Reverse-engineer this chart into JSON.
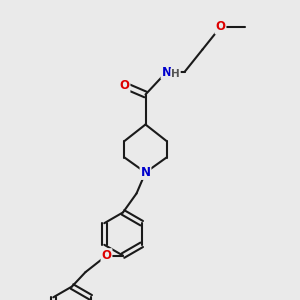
{
  "bg_color": "#eaeaea",
  "bond_color": "#1a1a1a",
  "bond_width": 1.5,
  "atom_colors": {
    "O": "#dd0000",
    "N": "#0000cc",
    "H": "#555555",
    "C": "#1a1a1a"
  },
  "font_size_atom": 8.5
}
